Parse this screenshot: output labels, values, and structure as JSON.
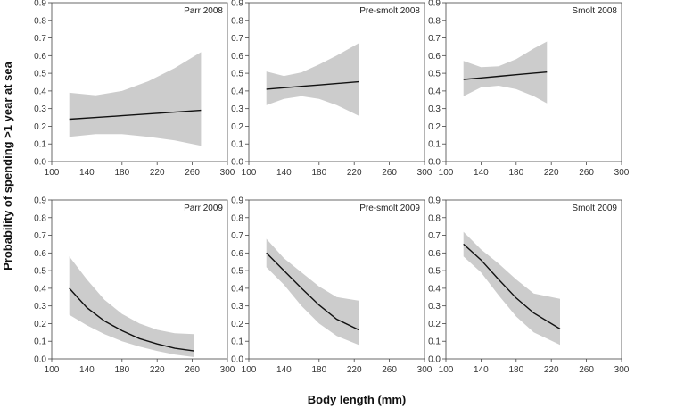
{
  "chart_data": {
    "type": "line",
    "xlabel": "Body length (mm)",
    "ylabel": "Probability of spending >1 year at sea",
    "xlim": [
      100,
      300
    ],
    "ylim": [
      0,
      0.9
    ],
    "xticks": [
      "100",
      "140",
      "180",
      "220",
      "260",
      "300"
    ],
    "yticks": [
      "0.0",
      "0.1",
      "0.2",
      "0.3",
      "0.4",
      "0.5",
      "0.6",
      "0.7",
      "0.8",
      "0.9"
    ],
    "panels": [
      {
        "title": "Parr 2008",
        "x": [
          120,
          150,
          180,
          210,
          240,
          270
        ],
        "y": [
          0.24,
          0.25,
          0.26,
          0.27,
          0.28,
          0.29
        ],
        "lower": [
          0.14,
          0.155,
          0.155,
          0.14,
          0.12,
          0.09
        ],
        "upper": [
          0.39,
          0.375,
          0.4,
          0.455,
          0.53,
          0.62
        ]
      },
      {
        "title": "Pre-smolt 2008",
        "x": [
          120,
          140,
          160,
          180,
          200,
          225
        ],
        "y": [
          0.41,
          0.418,
          0.426,
          0.434,
          0.442,
          0.452
        ],
        "lower": [
          0.32,
          0.355,
          0.37,
          0.355,
          0.32,
          0.26
        ],
        "upper": [
          0.51,
          0.485,
          0.505,
          0.55,
          0.6,
          0.67
        ]
      },
      {
        "title": "Smolt 2008",
        "x": [
          120,
          140,
          160,
          180,
          200,
          215
        ],
        "y": [
          0.465,
          0.474,
          0.483,
          0.492,
          0.501,
          0.507
        ],
        "lower": [
          0.37,
          0.42,
          0.43,
          0.41,
          0.37,
          0.33
        ],
        "upper": [
          0.57,
          0.535,
          0.54,
          0.58,
          0.64,
          0.68
        ]
      },
      {
        "title": "Parr 2009",
        "x": [
          120,
          140,
          160,
          180,
          200,
          220,
          240,
          262
        ],
        "y": [
          0.4,
          0.29,
          0.215,
          0.16,
          0.115,
          0.085,
          0.06,
          0.045
        ],
        "lower": [
          0.25,
          0.19,
          0.14,
          0.1,
          0.07,
          0.045,
          0.025,
          0.01
        ],
        "upper": [
          0.58,
          0.45,
          0.335,
          0.255,
          0.2,
          0.165,
          0.145,
          0.14
        ]
      },
      {
        "title": "Pre-smolt 2009",
        "x": [
          120,
          140,
          160,
          180,
          200,
          225
        ],
        "y": [
          0.6,
          0.5,
          0.4,
          0.305,
          0.225,
          0.165
        ],
        "lower": [
          0.52,
          0.42,
          0.3,
          0.2,
          0.13,
          0.08
        ],
        "upper": [
          0.68,
          0.57,
          0.49,
          0.41,
          0.35,
          0.33
        ]
      },
      {
        "title": "Smolt 2009",
        "x": [
          120,
          140,
          160,
          180,
          200,
          230
        ],
        "y": [
          0.65,
          0.56,
          0.45,
          0.345,
          0.26,
          0.17
        ],
        "lower": [
          0.58,
          0.49,
          0.36,
          0.24,
          0.15,
          0.08
        ],
        "upper": [
          0.72,
          0.62,
          0.54,
          0.45,
          0.37,
          0.34
        ]
      }
    ]
  }
}
